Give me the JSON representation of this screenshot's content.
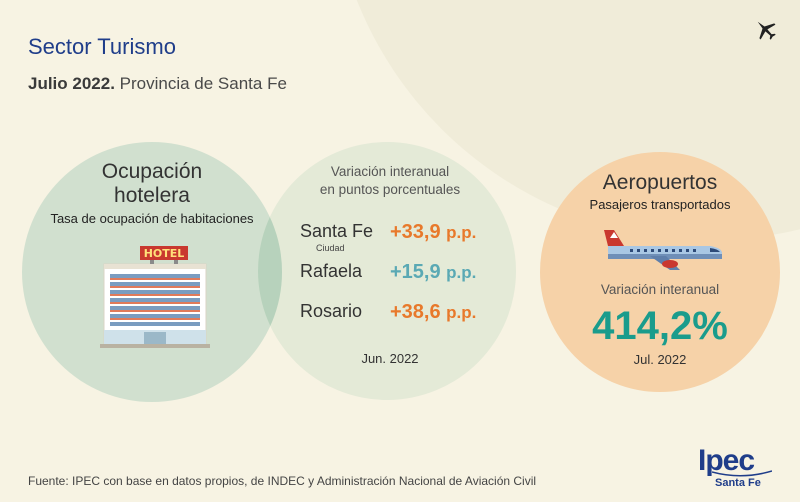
{
  "header": {
    "title": "Sector Turismo",
    "subtitle_bold": "Julio 2022.",
    "subtitle_rest": " Provincia de Santa Fe"
  },
  "hotel": {
    "title": "Ocupación hotelera",
    "subtitle": "Tasa de ocupación de habitaciones",
    "sign": "HOTEL"
  },
  "variation": {
    "title_line1": "Variación interanual",
    "title_line2": "en puntos porcentuales",
    "rows": [
      {
        "city": "Santa Fe",
        "city_sub": "Ciudad",
        "value": "+33,9",
        "unit": "p.p."
      },
      {
        "city": "Rafaela",
        "value": "+15,9",
        "unit": "p.p."
      },
      {
        "city": "Rosario",
        "value": "+38,6",
        "unit": "p.p."
      }
    ],
    "period": "Jun. 2022"
  },
  "airports": {
    "title": "Aeropuertos",
    "subtitle": "Pasajeros transportados",
    "variation_label": "Variación interanual",
    "variation_value": "414,2%",
    "period": "Jul. 2022"
  },
  "footer": {
    "source": "Fuente: IPEC con base en datos propios, de INDEC y  Administración Nacional de Aviación Civil"
  },
  "logo": {
    "name": "Ipec",
    "sub": "Santa Fe"
  },
  "colors": {
    "title_blue": "#1f3d8a",
    "orange": "#e8792b",
    "teal_light": "#5aa9b4",
    "teal_dark": "#1a9c8c"
  },
  "icons": [
    "airplane-icon",
    "hotel-building-icon",
    "airliner-icon"
  ]
}
